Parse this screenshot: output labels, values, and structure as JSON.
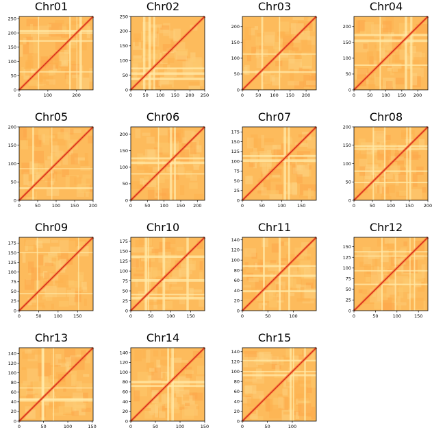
{
  "chart_data": [
    {
      "type": "heatmap",
      "title": "Chr01",
      "xlim": [
        0,
        258
      ],
      "ylim": [
        0,
        258
      ],
      "xticks": [
        "0",
        "100",
        "200"
      ],
      "xtick_values": [
        0,
        100,
        200
      ],
      "yticks": [
        "0",
        "50",
        "100",
        "150",
        "200",
        "250"
      ],
      "ytick_values": [
        0,
        50,
        100,
        150,
        200,
        250
      ],
      "colormap": "YlOrRd",
      "diagonal_color": "#d7301f",
      "background_color": "#fdbb5c",
      "gap_color": "#c6d7ef"
    },
    {
      "type": "heatmap",
      "title": "Chr02",
      "xlim": [
        0,
        250
      ],
      "ylim": [
        0,
        250
      ],
      "xticks": [
        "0",
        "50",
        "100",
        "150",
        "200",
        "250"
      ],
      "xtick_values": [
        0,
        50,
        100,
        150,
        200,
        250
      ],
      "yticks": [
        "0",
        "50",
        "100",
        "150",
        "200",
        "250"
      ],
      "ytick_values": [
        0,
        50,
        100,
        150,
        200,
        250
      ],
      "colormap": "YlOrRd",
      "diagonal_color": "#d7301f",
      "background_color": "#fdbb5c",
      "gap_color": "#c6d7ef"
    },
    {
      "type": "heatmap",
      "title": "Chr03",
      "xlim": [
        0,
        232
      ],
      "ylim": [
        0,
        232
      ],
      "xticks": [
        "0",
        "50",
        "100",
        "150",
        "200"
      ],
      "xtick_values": [
        0,
        50,
        100,
        150,
        200
      ],
      "yticks": [
        "0",
        "50",
        "100",
        "150",
        "200"
      ],
      "ytick_values": [
        0,
        50,
        100,
        150,
        200
      ],
      "colormap": "YlOrRd",
      "diagonal_color": "#d7301f",
      "background_color": "#fdbb5c",
      "gap_color": "#c6d7ef"
    },
    {
      "type": "heatmap",
      "title": "Chr04",
      "xlim": [
        0,
        232
      ],
      "ylim": [
        0,
        232
      ],
      "xticks": [
        "0",
        "50",
        "100",
        "150",
        "200"
      ],
      "xtick_values": [
        0,
        50,
        100,
        150,
        200
      ],
      "yticks": [
        "0",
        "50",
        "100",
        "150",
        "200"
      ],
      "ytick_values": [
        0,
        50,
        100,
        150,
        200
      ],
      "colormap": "YlOrRd",
      "diagonal_color": "#d7301f",
      "background_color": "#fdbb5c",
      "gap_color": "#c6d7ef"
    },
    {
      "type": "heatmap",
      "title": "Chr05",
      "xlim": [
        0,
        200
      ],
      "ylim": [
        0,
        200
      ],
      "xticks": [
        "0",
        "50",
        "100",
        "150",
        "200"
      ],
      "xtick_values": [
        0,
        50,
        100,
        150,
        200
      ],
      "yticks": [
        "0",
        "50",
        "100",
        "150",
        "200"
      ],
      "ytick_values": [
        0,
        50,
        100,
        150,
        200
      ],
      "colormap": "YlOrRd",
      "diagonal_color": "#d7301f",
      "background_color": "#fdbb5c",
      "gap_color": "#c6d7ef"
    },
    {
      "type": "heatmap",
      "title": "Chr06",
      "xlim": [
        0,
        222
      ],
      "ylim": [
        0,
        222
      ],
      "xticks": [
        "0",
        "50",
        "100",
        "150",
        "200"
      ],
      "xtick_values": [
        0,
        50,
        100,
        150,
        200
      ],
      "yticks": [
        "0",
        "50",
        "100",
        "150",
        "200"
      ],
      "ytick_values": [
        0,
        50,
        100,
        150,
        200
      ],
      "colormap": "YlOrRd",
      "diagonal_color": "#d7301f",
      "background_color": "#fdbb5c",
      "gap_color": "#c6d7ef"
    },
    {
      "type": "heatmap",
      "title": "Chr07",
      "xlim": [
        0,
        188
      ],
      "ylim": [
        0,
        188
      ],
      "xticks": [
        "0",
        "50",
        "100",
        "150"
      ],
      "xtick_values": [
        0,
        50,
        100,
        150
      ],
      "yticks": [
        "0",
        "25",
        "50",
        "75",
        "100",
        "125",
        "150",
        "175"
      ],
      "ytick_values": [
        0,
        25,
        50,
        75,
        100,
        125,
        150,
        175
      ],
      "colormap": "YlOrRd",
      "diagonal_color": "#d7301f",
      "background_color": "#fdbb5c",
      "gap_color": "#c6d7ef"
    },
    {
      "type": "heatmap",
      "title": "Chr08",
      "xlim": [
        0,
        200
      ],
      "ylim": [
        0,
        200
      ],
      "xticks": [
        "0",
        "50",
        "100",
        "150",
        "200"
      ],
      "xtick_values": [
        0,
        50,
        100,
        150,
        200
      ],
      "yticks": [
        "0",
        "50",
        "100",
        "150",
        "200"
      ],
      "ytick_values": [
        0,
        50,
        100,
        150,
        200
      ],
      "colormap": "YlOrRd",
      "diagonal_color": "#d7301f",
      "background_color": "#fdbb5c",
      "gap_color": "#c6d7ef"
    },
    {
      "type": "heatmap",
      "title": "Chr09",
      "xlim": [
        0,
        190
      ],
      "ylim": [
        0,
        190
      ],
      "xticks": [
        "0",
        "50",
        "100",
        "150"
      ],
      "xtick_values": [
        0,
        50,
        100,
        150
      ],
      "yticks": [
        "0",
        "25",
        "50",
        "75",
        "100",
        "125",
        "150",
        "175"
      ],
      "ytick_values": [
        0,
        25,
        50,
        75,
        100,
        125,
        150,
        175
      ],
      "colormap": "YlOrRd",
      "diagonal_color": "#d7301f",
      "background_color": "#fdbb5c",
      "gap_color": "#c6d7ef"
    },
    {
      "type": "heatmap",
      "title": "Chr10",
      "xlim": [
        0,
        185
      ],
      "ylim": [
        0,
        185
      ],
      "xticks": [
        "0",
        "50",
        "100",
        "150"
      ],
      "xtick_values": [
        0,
        50,
        100,
        150
      ],
      "yticks": [
        "0",
        "25",
        "50",
        "75",
        "100",
        "125",
        "150",
        "175"
      ],
      "ytick_values": [
        0,
        25,
        50,
        75,
        100,
        125,
        150,
        175
      ],
      "colormap": "YlOrRd",
      "diagonal_color": "#d7301f",
      "background_color": "#fdbb5c",
      "gap_color": "#c6d7ef"
    },
    {
      "type": "heatmap",
      "title": "Chr11",
      "xlim": [
        0,
        145
      ],
      "ylim": [
        0,
        145
      ],
      "xticks": [
        "0",
        "50",
        "100"
      ],
      "xtick_values": [
        0,
        50,
        100
      ],
      "yticks": [
        "0",
        "20",
        "40",
        "60",
        "80",
        "100",
        "120",
        "140"
      ],
      "ytick_values": [
        0,
        20,
        40,
        60,
        80,
        100,
        120,
        140
      ],
      "colormap": "YlOrRd",
      "diagonal_color": "#d7301f",
      "background_color": "#fdbb5c",
      "gap_color": "#c6d7ef"
    },
    {
      "type": "heatmap",
      "title": "Chr12",
      "xlim": [
        0,
        172
      ],
      "ylim": [
        0,
        172
      ],
      "xticks": [
        "0",
        "50",
        "100",
        "150"
      ],
      "xtick_values": [
        0,
        50,
        100,
        150
      ],
      "yticks": [
        "0",
        "25",
        "50",
        "75",
        "100",
        "125",
        "150"
      ],
      "ytick_values": [
        0,
        25,
        50,
        75,
        100,
        125,
        150
      ],
      "colormap": "YlOrRd",
      "diagonal_color": "#d7301f",
      "background_color": "#fdbb5c",
      "gap_color": "#c6d7ef"
    },
    {
      "type": "heatmap",
      "title": "Chr13",
      "xlim": [
        0,
        152
      ],
      "ylim": [
        0,
        152
      ],
      "xticks": [
        "0",
        "50",
        "100",
        "150"
      ],
      "xtick_values": [
        0,
        50,
        100,
        150
      ],
      "yticks": [
        "0",
        "20",
        "40",
        "60",
        "80",
        "100",
        "120",
        "140"
      ],
      "ytick_values": [
        0,
        20,
        40,
        60,
        80,
        100,
        120,
        140
      ],
      "colormap": "YlOrRd",
      "diagonal_color": "#d7301f",
      "background_color": "#fdbb5c",
      "gap_color": "#c6d7ef"
    },
    {
      "type": "heatmap",
      "title": "Chr14",
      "xlim": [
        0,
        150
      ],
      "ylim": [
        0,
        150
      ],
      "xticks": [
        "0",
        "50",
        "100",
        "150"
      ],
      "xtick_values": [
        0,
        50,
        100,
        150
      ],
      "yticks": [
        "0",
        "20",
        "40",
        "60",
        "80",
        "100",
        "120",
        "140"
      ],
      "ytick_values": [
        0,
        20,
        40,
        60,
        80,
        100,
        120,
        140
      ],
      "colormap": "YlOrRd",
      "diagonal_color": "#d7301f",
      "background_color": "#fdbb5c",
      "gap_color": "#c6d7ef"
    },
    {
      "type": "heatmap",
      "title": "Chr15",
      "xlim": [
        0,
        148
      ],
      "ylim": [
        0,
        148
      ],
      "xticks": [
        "0",
        "50",
        "100"
      ],
      "xtick_values": [
        0,
        50,
        100
      ],
      "yticks": [
        "0",
        "20",
        "40",
        "60",
        "80",
        "100",
        "120",
        "140"
      ],
      "ytick_values": [
        0,
        20,
        40,
        60,
        80,
        100,
        120,
        140
      ],
      "colormap": "YlOrRd",
      "diagonal_color": "#d7301f",
      "background_color": "#fdbb5c",
      "gap_color": "#c6d7ef"
    }
  ]
}
